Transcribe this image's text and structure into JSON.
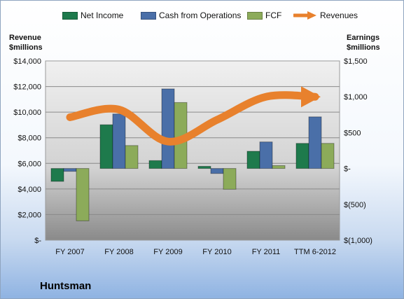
{
  "company_name": "Huntsman",
  "chart_data": {
    "type": "bar",
    "categories": [
      "FY 2007",
      "FY 2008",
      "FY 2009",
      "FY 2010",
      "FY 2011",
      "TTM 6-2012"
    ],
    "left_axis": {
      "label_line1": "Revenue",
      "label_line2": "$millions",
      "ylim": [
        0,
        14000
      ],
      "ticks": [
        0,
        2000,
        4000,
        6000,
        8000,
        10000,
        12000,
        14000
      ],
      "tick_labels": [
        "$-",
        "$2,000",
        "$4,000",
        "$6,000",
        "$8,000",
        "$10,000",
        "$12,000",
        "$14,000"
      ]
    },
    "right_axis": {
      "label_line1": "Earnings",
      "label_line2": "$millions",
      "ylim": [
        -1000,
        1500
      ],
      "ticks": [
        -1000,
        -500,
        0,
        500,
        1000,
        1500
      ],
      "tick_labels": [
        "$(1,000)",
        "$(500)",
        "$-",
        "$500",
        "$1,000",
        "$1,500"
      ]
    },
    "series": [
      {
        "name": "Net Income",
        "axis": "right",
        "kind": "bar",
        "color": "#1e7a4c",
        "values": [
          -180,
          610,
          110,
          30,
          240,
          350
        ]
      },
      {
        "name": "Cash from Operations",
        "axis": "right",
        "kind": "bar",
        "color": "#4a6fa8",
        "values": [
          -40,
          760,
          1110,
          -70,
          370,
          720
        ]
      },
      {
        "name": "FCF",
        "axis": "right",
        "kind": "bar",
        "color": "#8cab5a",
        "values": [
          -730,
          320,
          920,
          -290,
          40,
          350
        ]
      },
      {
        "name": "Revenues",
        "axis": "left",
        "kind": "arrow-line",
        "color": "#e8812d",
        "values": [
          9600,
          10200,
          7700,
          9400,
          11200,
          11200
        ]
      }
    ],
    "legend_position": "top",
    "grid": true
  }
}
